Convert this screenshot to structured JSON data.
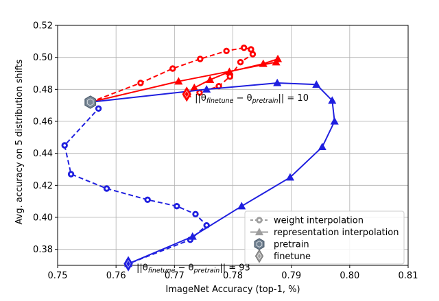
{
  "chart_data": {
    "type": "line",
    "xlabel": "ImageNet Accuracy (top-1, %)",
    "ylabel": "Avg. accuracy on 5 distribution shifts",
    "xlim": [
      0.75,
      0.81
    ],
    "ylim": [
      0.37,
      0.52
    ],
    "x_ticks": [
      "0.75",
      "0.76",
      "0.77",
      "0.78",
      "0.79",
      "0.80",
      "0.81"
    ],
    "y_ticks": [
      "0.38",
      "0.40",
      "0.42",
      "0.44",
      "0.46",
      "0.48",
      "0.50",
      "0.52"
    ],
    "grid": true,
    "legend_position": "lower-right",
    "legend": [
      {
        "label": "weight interpolation",
        "marker": "circle",
        "line": "dashed",
        "color": "#9e9e9e"
      },
      {
        "label": "representation interpolation",
        "marker": "triangle",
        "line": "solid",
        "color": "#9e9e9e"
      },
      {
        "label": "pretrain",
        "marker": "hexagon",
        "color": "#6f7f8f"
      },
      {
        "label": "finetune",
        "marker": "diamond",
        "color": "#a0a0a0"
      }
    ],
    "pretrain": {
      "x": 0.7556,
      "y": 0.472,
      "color": "#7a8896"
    },
    "series": [
      {
        "color": "#ff0000",
        "style": "dashed",
        "marker": "circle",
        "x": [
          0.7556,
          0.7642,
          0.7697,
          0.7744,
          0.7789,
          0.7819,
          0.7831,
          0.7834,
          0.7813,
          0.7795,
          0.7776,
          0.7743
        ],
        "y": [
          0.472,
          0.484,
          0.493,
          0.499,
          0.504,
          0.506,
          0.505,
          0.502,
          0.497,
          0.488,
          0.482,
          0.478
        ]
      },
      {
        "color": "#ff0000",
        "style": "solid",
        "marker": "triangle",
        "x": [
          0.7556,
          0.7707,
          0.7874,
          0.7877,
          0.7852,
          0.7794,
          0.7761,
          0.7734,
          0.7722
        ],
        "y": [
          0.472,
          0.485,
          0.497,
          0.499,
          0.496,
          0.491,
          0.486,
          0.481,
          0.477
        ]
      },
      {
        "color": "#1f1fdf",
        "style": "dashed",
        "marker": "circle",
        "x": [
          0.7556,
          0.757,
          0.7512,
          0.7523,
          0.7584,
          0.7654,
          0.7704,
          0.7736,
          0.7755,
          0.7727,
          0.7621
        ],
        "y": [
          0.472,
          0.468,
          0.445,
          0.427,
          0.418,
          0.411,
          0.407,
          0.402,
          0.395,
          0.386,
          0.371
        ]
      },
      {
        "color": "#1f1fdf",
        "style": "solid",
        "marker": "triangle",
        "x": [
          0.7556,
          0.7755,
          0.7876,
          0.7943,
          0.797,
          0.7974,
          0.7953,
          0.7898,
          0.7815,
          0.7731,
          0.7621
        ],
        "y": [
          0.472,
          0.48,
          0.484,
          0.483,
          0.473,
          0.46,
          0.444,
          0.425,
          0.407,
          0.388,
          0.371
        ]
      }
    ],
    "finetune_points": [
      {
        "x": 0.7721,
        "y": 0.477,
        "color": "#ff0000"
      },
      {
        "x": 0.7621,
        "y": 0.371,
        "color": "#1f1fdf"
      }
    ],
    "annotations": [
      {
        "text_prefix": "||θ",
        "sub1": "finetune",
        "mid": " − θ",
        "sub2": "pretrain",
        "suffix": "|| = 10",
        "x": 0.7735,
        "y": 0.4745
      },
      {
        "text_prefix": "||θ",
        "sub1": "finetune",
        "mid": " − θ",
        "sub2": "pretrain",
        "suffix": "|| = 93",
        "x": 0.7635,
        "y": 0.3685
      }
    ]
  }
}
